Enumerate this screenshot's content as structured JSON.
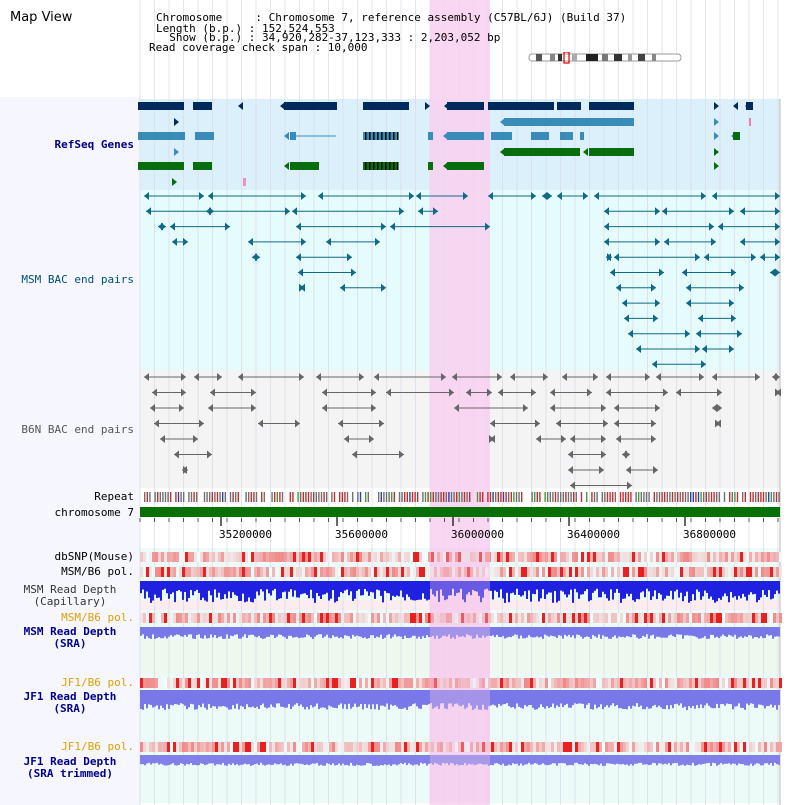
{
  "map_view": {
    "title": "Map View",
    "info": {
      "chromosome": "Chromosome     : Chromosome 7, reference assembly (C57BL/6J) (Build 37)",
      "length": "Length (b.p.) : 152,524,553",
      "show": "  Show (b.p.) : 34,920,282-37,123,333 : 2,203,052 bp",
      "coverage": "Read coverage check span : 10,000"
    },
    "tracks": {
      "refseq": "RefSeq Genes",
      "msm_bac": "MSM BAC end pairs",
      "b6n_bac": "B6N BAC end pairs",
      "repeat": "Repeat",
      "chromosome": "chromosome 7",
      "dbsnp": "dbSNP(Mouse)",
      "msm_b6_pol_1": "MSM/B6 pol.",
      "msm_depth_cap_1": "MSM Read Depth",
      "msm_depth_cap_2": "(Capillary)",
      "msm_b6_pol_2": "MSM/B6 pol.",
      "msm_depth_sra_1": "MSM Read Depth",
      "msm_depth_sra_2": "(SRA)",
      "jf1_b6_pol_1": "JF1/B6 pol.",
      "jf1_depth_sra_1": "JF1 Read Depth",
      "jf1_depth_sra_2": "(SRA)",
      "jf1_b6_pol_2": "JF1/B6 pol.",
      "jf1_depth_trim_1": "JF1 Read Depth",
      "jf1_depth_trim_2": "(SRA trimmed)"
    },
    "axis_ticks": [
      "35200000",
      "35600000",
      "36000000",
      "36400000",
      "36800000"
    ],
    "colors": {
      "refseq_label": "#000080",
      "msm_bac_label": "#005070",
      "b6n_bac_label": "#555555",
      "pol_label": "#e0a000",
      "depth_label": "#000090",
      "highlight": "#f8d0f0"
    }
  }
}
